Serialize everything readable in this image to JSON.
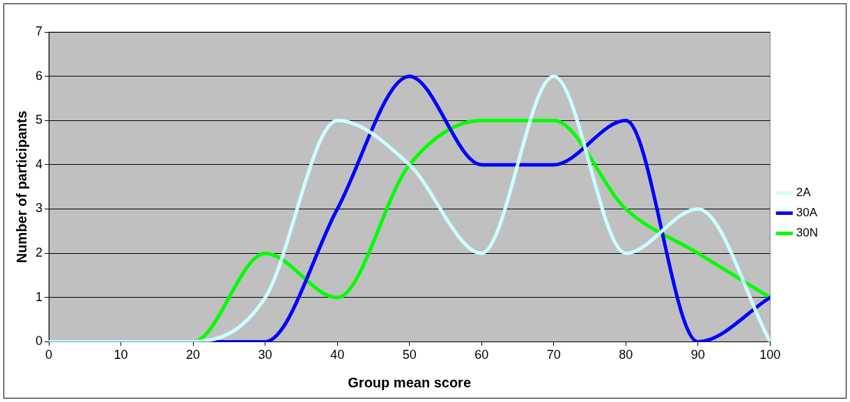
{
  "chart_data": {
    "type": "line",
    "xlabel": "Group mean score",
    "ylabel": "Number of participants",
    "x": [
      0,
      10,
      20,
      30,
      40,
      50,
      60,
      70,
      80,
      90,
      100
    ],
    "series": [
      {
        "name": "2A",
        "color": "#ccffff",
        "values": [
          0,
          0,
          0,
          1,
          5,
          4,
          2,
          6,
          2,
          3,
          0
        ]
      },
      {
        "name": "30A",
        "color": "#0000ff",
        "values": [
          0,
          0,
          0,
          0,
          3,
          6,
          4,
          4,
          5,
          0,
          1
        ]
      },
      {
        "name": "30N",
        "color": "#00ff00",
        "values": [
          0,
          0,
          0,
          2,
          1,
          4,
          5,
          5,
          3,
          2,
          1
        ]
      }
    ],
    "xlim": [
      0,
      100
    ],
    "xticks": [
      0,
      10,
      20,
      30,
      40,
      50,
      60,
      70,
      80,
      90,
      100
    ],
    "ylim": [
      0,
      7
    ],
    "yticks": [
      0,
      1,
      2,
      3,
      4,
      5,
      6,
      7
    ],
    "grid": "y",
    "legend": "right",
    "marker": "none",
    "line_style": "solid"
  }
}
